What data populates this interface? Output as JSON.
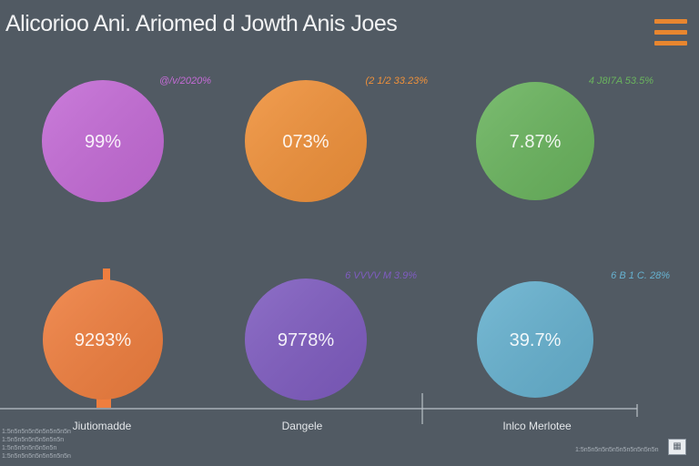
{
  "title": "Alicorioo Ani. Ariomed d Jowth Anis Joes",
  "menu_icon": "hamburger-menu-icon",
  "corner_icon": "grid-icon",
  "chart_data": {
    "type": "bubble",
    "title": "Alicorioo Ani. Ariomed d Jowth Anis Joes",
    "categories": [
      "Jiutiomadde",
      "Dangele",
      "Inlco Merlotee"
    ],
    "bubbles": [
      {
        "label": "99%",
        "tag": "@/v/2020%",
        "color": "#c46bd6",
        "row": 0,
        "col": 0
      },
      {
        "label": "073%",
        "tag": "(2 1/2 33.23%",
        "color": "#f0913a",
        "row": 0,
        "col": 1
      },
      {
        "label": "7.87%",
        "tag": "4 J8I7A 53.5%",
        "color": "#6ab45e",
        "row": 0,
        "col": 2
      },
      {
        "label": "9293%",
        "tag": "",
        "color": "#ef7e3e",
        "row": 1,
        "col": 0
      },
      {
        "label": "9778%",
        "tag": "6 VVVV M 3.9%",
        "color": "#7f5cc0",
        "row": 1,
        "col": 1
      },
      {
        "label": "39.7%",
        "tag": "6 B 1 C. 28%",
        "color": "#66b1cf",
        "row": 1,
        "col": 2
      }
    ],
    "legend": "none",
    "grid": false
  },
  "footnotes": {
    "left": [
      "1:5n5n5n5n5n5n5n5n5n",
      "1:5n5n5n5n5n5n5n5n",
      "1:5n5n5n5n5n5n5n",
      "1:5n5n5n5n5n5n5n5n5n"
    ],
    "right": "1:5n5n5n5n5n5n5n5n5n5n5n"
  }
}
